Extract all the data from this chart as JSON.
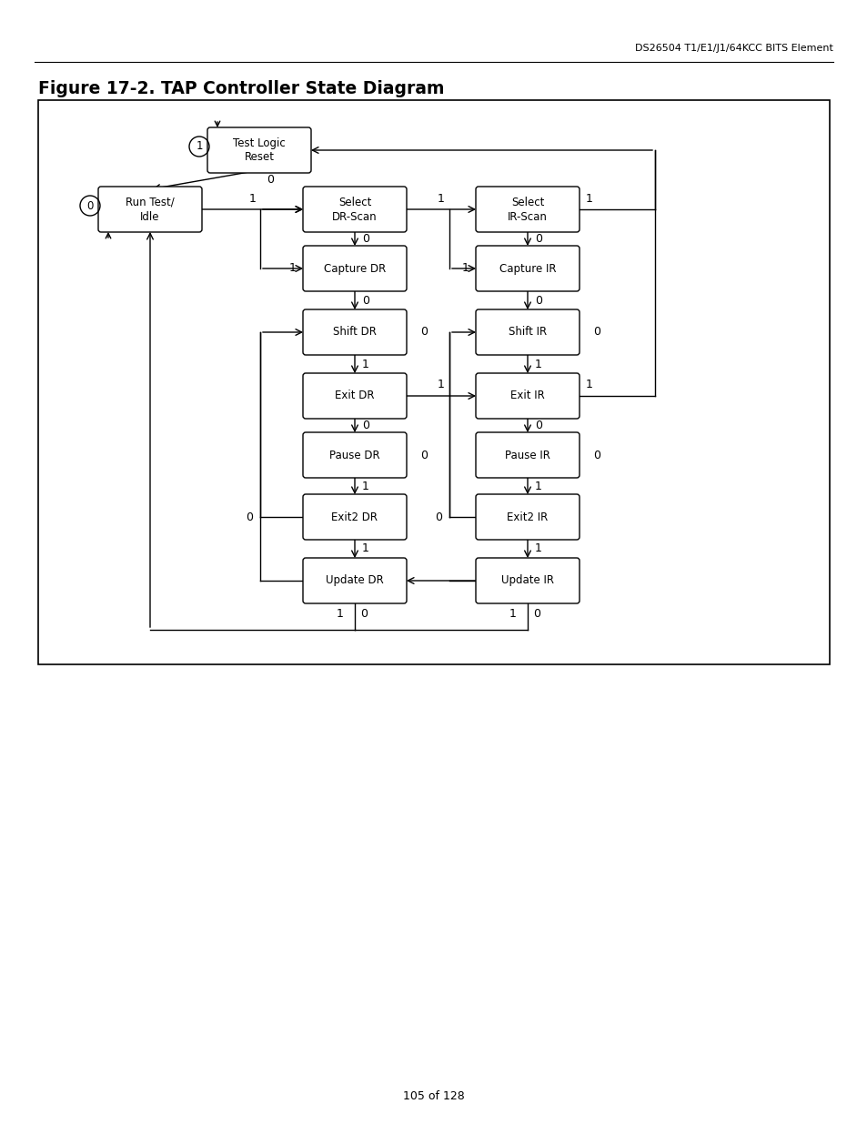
{
  "title": "Figure 17-2. TAP Controller State Diagram",
  "header": "DS26504 T1/E1/J1/64KCC BITS Element",
  "footer": "105 of 128",
  "figsize": [
    9.54,
    12.35
  ],
  "dpi": 100,
  "nodes": {
    "tlr": {
      "label": "Test Logic\nReset",
      "col": 1,
      "row": 0
    },
    "rti": {
      "label": "Run Test/\nIdle",
      "col": 0,
      "row": 1
    },
    "sdr": {
      "label": "Select\nDR-Scan",
      "col": 2,
      "row": 1
    },
    "sir": {
      "label": "Select\nIR-Scan",
      "col": 3,
      "row": 1
    },
    "cdr": {
      "label": "Capture DR",
      "col": 2,
      "row": 2
    },
    "cir": {
      "label": "Capture IR",
      "col": 3,
      "row": 2
    },
    "shdr": {
      "label": "Shift DR",
      "col": 2,
      "row": 3
    },
    "shir": {
      "label": "Shift IR",
      "col": 3,
      "row": 3
    },
    "e1dr": {
      "label": "Exit DR",
      "col": 2,
      "row": 4
    },
    "e1ir": {
      "label": "Exit IR",
      "col": 3,
      "row": 4
    },
    "pdr": {
      "label": "Pause DR",
      "col": 2,
      "row": 5
    },
    "pir": {
      "label": "Pause IR",
      "col": 3,
      "row": 5
    },
    "e2dr": {
      "label": "Exit2 DR",
      "col": 2,
      "row": 6
    },
    "e2ir": {
      "label": "Exit2 IR",
      "col": 3,
      "row": 6
    },
    "udr": {
      "label": "Update DR",
      "col": 2,
      "row": 7
    },
    "uir": {
      "label": "Update IR",
      "col": 3,
      "row": 7
    }
  }
}
